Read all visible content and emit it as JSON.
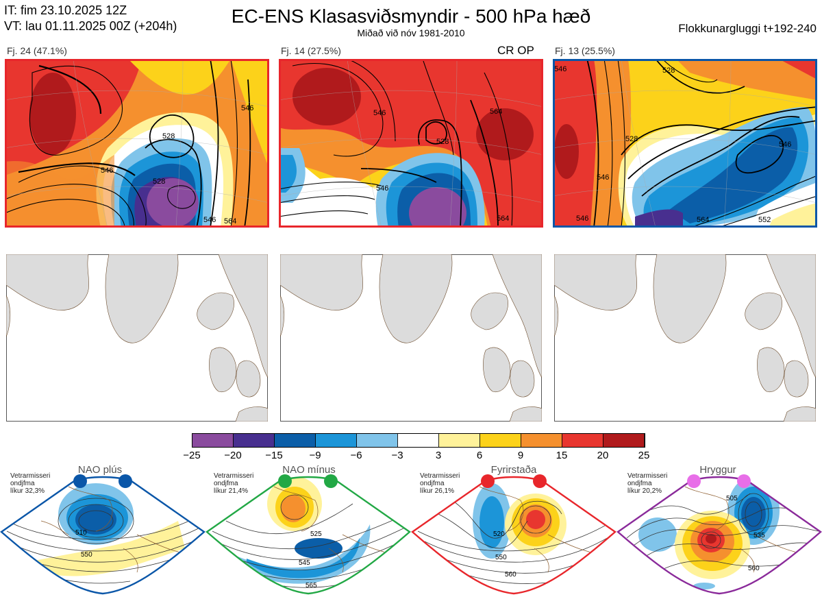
{
  "header": {
    "it_line": "IT: fim 23.10.2025 12Z",
    "vt_line": "VT: lau 01.11.2025 00Z  (+204h)",
    "title": "EC-ENS Klasasviðsmyndir - 500 hPa hæð",
    "subtitle": "Miðað við nóv 1981-2010",
    "window": "Flokkunargluggi t+192-240"
  },
  "panels": [
    {
      "label": "Fj. 24 (47.1%)",
      "border_color": "#e8262b",
      "op_label": ""
    },
    {
      "label": "Fj. 14 (27.5%)",
      "border_color": "#e8262b",
      "op_label": "CR OP"
    },
    {
      "label": "Fj. 13 (25.5%)",
      "border_color": "#0a56a8",
      "op_label": ""
    }
  ],
  "contour_labels": {
    "panel1": [
      "546",
      "528",
      "528",
      "546",
      "546",
      "564"
    ],
    "panel2": [
      "546",
      "528",
      "546",
      "564",
      "564"
    ],
    "panel3": [
      "546",
      "528",
      "546",
      "528",
      "546",
      "546",
      "564",
      "552"
    ]
  },
  "colorbar": {
    "ticks": [
      "−25",
      "−20",
      "−15",
      "−9",
      "−6",
      "−3",
      "3",
      "6",
      "9",
      "15",
      "20",
      "25"
    ],
    "colors": [
      "#8a4b9e",
      "#482f8f",
      "#0b5ea8",
      "#1c95d8",
      "#80c4ea",
      "#ffffff",
      "#fff29a",
      "#fcd21a",
      "#f5902e",
      "#e8362f",
      "#b01a1c"
    ]
  },
  "regimes": [
    {
      "name": "NAO plús",
      "note_line1": "Vetrarmisseri",
      "note_line2": "ondjfma",
      "note_line3": "líkur 32,3%",
      "dot_color": "#0a56a8",
      "border_color": "#0a56a8",
      "contours": [
        "510",
        "550"
      ]
    },
    {
      "name": "NAO mínus",
      "note_line1": "Vetrarmisseri",
      "note_line2": "ondjfma",
      "note_line3": "líkur 21,4%",
      "dot_color": "#22a845",
      "border_color": "#22a845",
      "contours": [
        "525",
        "545",
        "565"
      ]
    },
    {
      "name": "Fyrirstaða",
      "note_line1": "Vetrarmisseri",
      "note_line2": "ondjfma",
      "note_line3": "líkur 26,1%",
      "dot_color": "#e8262b",
      "border_color": "#e8262b",
      "contours": [
        "520",
        "550",
        "560"
      ]
    },
    {
      "name": "Hryggur",
      "note_line1": "Vetrarmisseri",
      "note_line2": "ondjfma",
      "note_line3": "líkur 20,2%",
      "dot_color": "#e86ee8",
      "border_color": "#8a2a9a",
      "contours": [
        "505",
        "535",
        "560"
      ]
    }
  ]
}
